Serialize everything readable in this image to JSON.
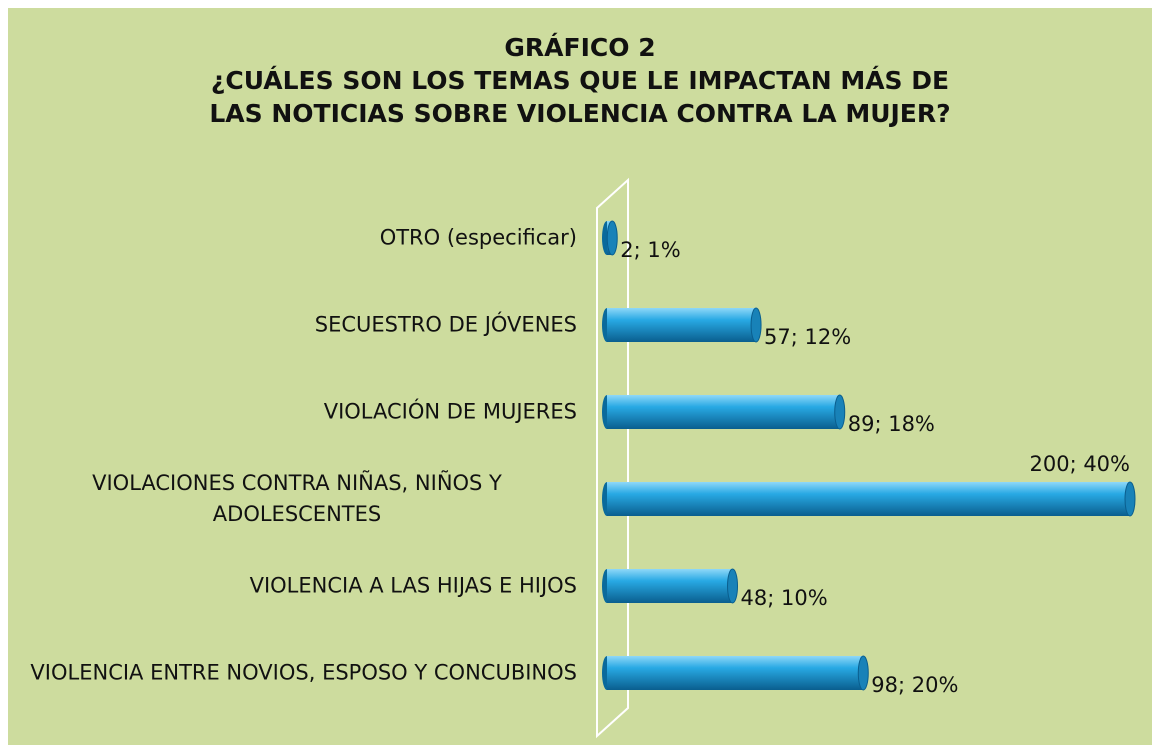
{
  "chart_data": {
    "type": "bar",
    "orientation": "horizontal",
    "title": [
      "GRÁFICO 2",
      "¿CUÁLES SON LOS TEMAS QUE LE IMPACTAN MÁS DE",
      "LAS NOTICIAS SOBRE VIOLENCIA CONTRA LA MUJER?"
    ],
    "categories": [
      "OTRO (especificar)",
      "SECUESTRO DE JÓVENES",
      "VIOLACIÓN DE MUJERES",
      "VIOLACIONES CONTRA NIÑAS, NIÑOS Y ADOLESCENTES",
      "VIOLENCIA A LAS HIJAS E HIJOS",
      "VIOLENCIA ENTRE NOVIOS, ESPOSO Y CONCUBINOS"
    ],
    "values": [
      2,
      57,
      89,
      200,
      48,
      98
    ],
    "value_labels": [
      "2; 1%",
      "57; 12%",
      "89; 18%",
      "200; 40%",
      "48; 10%",
      "98; 20%"
    ],
    "color": "#1f9fd8"
  }
}
